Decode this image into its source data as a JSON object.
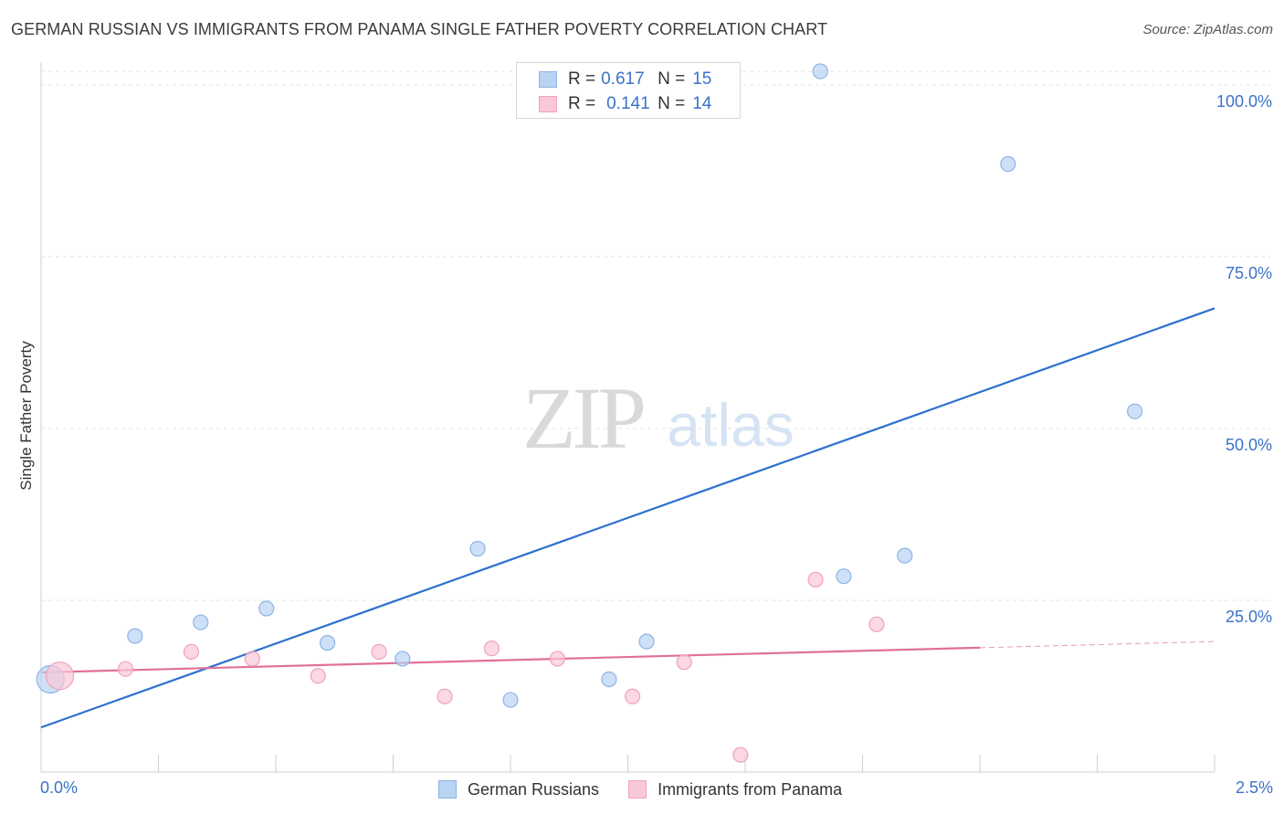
{
  "title": "GERMAN RUSSIAN VS IMMIGRANTS FROM PANAMA SINGLE FATHER POVERTY CORRELATION CHART",
  "source": "Source: ZipAtlas.com",
  "watermark": {
    "zip": "ZIP",
    "atlas": "atlas"
  },
  "legend_top": [
    {
      "r_label": "R =",
      "r_value": "0.617",
      "n_label": "N =",
      "n_value": "15"
    },
    {
      "r_label": "R =",
      "r_value": "0.141",
      "n_label": "N =",
      "n_value": "14"
    }
  ],
  "legend_bottom": [
    {
      "label": "German Russians"
    },
    {
      "label": "Immigrants from Panama"
    }
  ],
  "colors": {
    "blue_fill": "#b9d3f3",
    "blue_stroke": "#8db4e6",
    "blue_line": "#2f6fd0",
    "pink_fill": "#f9c8d7",
    "pink_stroke": "#eea3bb",
    "pink_line": "#e0709a",
    "axis_text": "#3a72c8",
    "grid": "#e3e3e3"
  },
  "chart_data": {
    "type": "scatter",
    "title": "GERMAN RUSSIAN VS IMMIGRANTS FROM PANAMA SINGLE FATHER POVERTY CORRELATION CHART",
    "xlabel": "",
    "ylabel": "Single Father Poverty",
    "xlim": [
      0,
      2.5
    ],
    "ylim": [
      0,
      100
    ],
    "x_tick_labels": [
      "0.0%",
      "2.5%"
    ],
    "y_ticks": [
      25,
      50,
      75,
      100
    ],
    "y_tick_labels": [
      "25.0%",
      "50.0%",
      "75.0%",
      "100.0%"
    ],
    "grid": true,
    "series": [
      {
        "name": "German Russians",
        "color": "#8db4e6",
        "points": [
          {
            "x": 0.02,
            "y": 13.5
          },
          {
            "x": 0.2,
            "y": 19.8
          },
          {
            "x": 0.34,
            "y": 21.8
          },
          {
            "x": 0.48,
            "y": 23.8
          },
          {
            "x": 0.61,
            "y": 18.8
          },
          {
            "x": 0.77,
            "y": 16.5
          },
          {
            "x": 0.93,
            "y": 32.5
          },
          {
            "x": 1.0,
            "y": 10.5
          },
          {
            "x": 1.21,
            "y": 13.5
          },
          {
            "x": 1.29,
            "y": 19.0
          },
          {
            "x": 1.66,
            "y": 102.0
          },
          {
            "x": 1.71,
            "y": 28.5
          },
          {
            "x": 1.84,
            "y": 31.5
          },
          {
            "x": 2.06,
            "y": 88.5
          },
          {
            "x": 2.33,
            "y": 52.5
          }
        ],
        "trend": {
          "x0": 0.0,
          "y0": 6.5,
          "x1": 2.5,
          "y1": 67.5,
          "style": "solid"
        }
      },
      {
        "name": "Immigrants from Panama",
        "color": "#eea3bb",
        "points": [
          {
            "x": 0.04,
            "y": 14.0
          },
          {
            "x": 0.18,
            "y": 15.0
          },
          {
            "x": 0.32,
            "y": 17.5
          },
          {
            "x": 0.45,
            "y": 16.5
          },
          {
            "x": 0.59,
            "y": 14.0
          },
          {
            "x": 0.72,
            "y": 17.5
          },
          {
            "x": 0.86,
            "y": 11.0
          },
          {
            "x": 0.96,
            "y": 18.0
          },
          {
            "x": 1.1,
            "y": 16.5
          },
          {
            "x": 1.26,
            "y": 11.0
          },
          {
            "x": 1.37,
            "y": 16.0
          },
          {
            "x": 1.49,
            "y": 2.5
          },
          {
            "x": 1.65,
            "y": 28.0
          },
          {
            "x": 1.78,
            "y": 21.5
          }
        ],
        "trend": {
          "x0": 0.0,
          "y0": 14.5,
          "x1": 2.5,
          "y1": 19.0,
          "solid_until_x": 2.0
        }
      }
    ]
  }
}
